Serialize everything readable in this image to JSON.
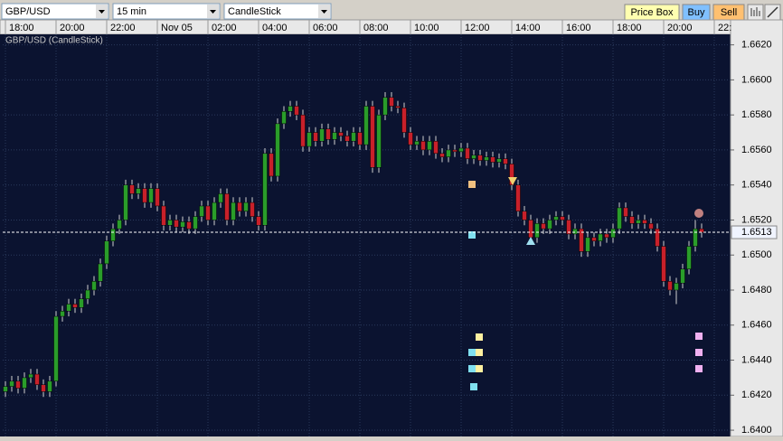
{
  "toolbar": {
    "symbol": "GBP/USD",
    "interval": "15 min",
    "chart_type": "CandleStick",
    "buttons": [
      "Price Box",
      "Buy",
      "Sell"
    ]
  },
  "chart_data": {
    "type": "candlestick",
    "title": "GBP/USD (CandleStick)",
    "up_color": "#2a9d2a",
    "down_color": "#c8202a",
    "grid": true,
    "xlim": [
      -0.43,
      114.57
    ],
    "xticks": [
      {
        "value": 0,
        "label": "18:00"
      },
      {
        "value": 8,
        "label": "20:00"
      },
      {
        "value": 16,
        "label": "22:00"
      },
      {
        "value": 24,
        "label": "Nov 05"
      },
      {
        "value": 32,
        "label": "02:00"
      },
      {
        "value": 40,
        "label": "04:00"
      },
      {
        "value": 48,
        "label": "06:00"
      },
      {
        "value": 56,
        "label": "08:00"
      },
      {
        "value": 64,
        "label": "10:00"
      },
      {
        "value": 72,
        "label": "12:00"
      },
      {
        "value": 80,
        "label": "14:00"
      },
      {
        "value": 88,
        "label": "16:00"
      },
      {
        "value": 96,
        "label": "18:00"
      },
      {
        "value": 104,
        "label": "20:00"
      },
      {
        "value": 112,
        "label": "22:"
      }
    ],
    "ylim": [
      1.6399,
      1.6626
    ],
    "yticks": [
      {
        "value": 1.64,
        "label": "1.6400"
      },
      {
        "value": 1.642,
        "label": "1.6420"
      },
      {
        "value": 1.644,
        "label": "1.6440"
      },
      {
        "value": 1.646,
        "label": "1.6460"
      },
      {
        "value": 1.648,
        "label": "1.6480"
      },
      {
        "value": 1.65,
        "label": "1.6500"
      },
      {
        "value": 1.652,
        "label": "1.6520"
      },
      {
        "value": 1.654,
        "label": "1.6540"
      },
      {
        "value": 1.656,
        "label": "1.6560"
      },
      {
        "value": 1.658,
        "label": "1.6580"
      },
      {
        "value": 1.66,
        "label": "1.6600"
      },
      {
        "value": 1.662,
        "label": "1.6620"
      }
    ],
    "current": {
      "value": 1.6513,
      "label": "1.6513"
    },
    "open": [
      1.6422,
      1.6425,
      1.6428,
      1.6424,
      1.643,
      1.6432,
      1.6426,
      1.6422,
      1.6428,
      1.6465,
      1.6468,
      1.6472,
      1.647,
      1.6475,
      1.648,
      1.6485,
      1.6495,
      1.6508,
      1.6515,
      1.652,
      1.654,
      1.6535,
      1.6538,
      1.653,
      1.6538,
      1.6528,
      1.6517,
      1.652,
      1.6516,
      1.6519,
      1.6515,
      1.6522,
      1.6528,
      1.652,
      1.653,
      1.6535,
      1.652,
      1.653,
      1.6525,
      1.653,
      1.6522,
      1.6517,
      1.6558,
      1.6545,
      1.6575,
      1.6582,
      1.6585,
      1.658,
      1.6562,
      1.657,
      1.6565,
      1.6572,
      1.6566,
      1.657,
      1.6568,
      1.6565,
      1.657,
      1.6563,
      1.6585,
      1.655,
      1.658,
      1.659,
      1.6585,
      1.6584,
      1.657,
      1.6563,
      1.6565,
      1.656,
      1.6565,
      1.6558,
      1.6556,
      1.656,
      1.6559,
      1.6561,
      1.6555,
      1.6557,
      1.6554,
      1.6556,
      1.6553,
      1.6555,
      1.6552,
      1.654,
      1.6525,
      1.652,
      1.651,
      1.6518,
      1.6515,
      1.652,
      1.6522,
      1.652,
      1.6512,
      1.6515,
      1.6502,
      1.651,
      1.6508,
      1.6512,
      1.651,
      1.6515,
      1.6527,
      1.6522,
      1.6518,
      1.652,
      1.6518,
      1.6515,
      1.6505,
      1.6485,
      1.648,
      1.6484,
      1.6492,
      1.6505,
      1.6515
    ],
    "high": [
      1.6428,
      1.6431,
      1.6431,
      1.6433,
      1.6435,
      1.6435,
      1.6429,
      1.6431,
      1.6468,
      1.6471,
      1.6475,
      1.6475,
      1.6478,
      1.6483,
      1.6488,
      1.6498,
      1.6511,
      1.6518,
      1.6523,
      1.6543,
      1.6543,
      1.6541,
      1.6541,
      1.6541,
      1.6541,
      1.6531,
      1.6523,
      1.6523,
      1.6522,
      1.6522,
      1.6525,
      1.6531,
      1.6531,
      1.6533,
      1.6538,
      1.6538,
      1.6533,
      1.6533,
      1.6533,
      1.6533,
      1.6525,
      1.6561,
      1.6561,
      1.6578,
      1.6585,
      1.6588,
      1.6588,
      1.6583,
      1.6573,
      1.6573,
      1.6575,
      1.6575,
      1.6573,
      1.6573,
      1.6571,
      1.6573,
      1.6573,
      1.6588,
      1.6588,
      1.6583,
      1.6593,
      1.6593,
      1.6588,
      1.6587,
      1.6573,
      1.6568,
      1.6568,
      1.6568,
      1.6568,
      1.6561,
      1.6563,
      1.6563,
      1.6564,
      1.6564,
      1.656,
      1.656,
      1.6559,
      1.6559,
      1.6558,
      1.6558,
      1.6555,
      1.6543,
      1.6528,
      1.6523,
      1.6521,
      1.6521,
      1.6523,
      1.6525,
      1.6525,
      1.6523,
      1.6518,
      1.6518,
      1.6513,
      1.6513,
      1.6515,
      1.6515,
      1.6518,
      1.653,
      1.653,
      1.6525,
      1.6523,
      1.6523,
      1.6521,
      1.6518,
      1.6508,
      1.6488,
      1.6487,
      1.6495,
      1.6508,
      1.652,
      1.6518
    ],
    "low": [
      1.6419,
      1.6422,
      1.6421,
      1.6421,
      1.6427,
      1.6423,
      1.6419,
      1.6419,
      1.6425,
      1.6462,
      1.6465,
      1.6467,
      1.6467,
      1.6472,
      1.6477,
      1.6482,
      1.6492,
      1.6505,
      1.6512,
      1.6517,
      1.6532,
      1.6532,
      1.6527,
      1.6527,
      1.6525,
      1.6514,
      1.6514,
      1.6513,
      1.6513,
      1.6512,
      1.6512,
      1.6519,
      1.6517,
      1.6517,
      1.6527,
      1.6517,
      1.6517,
      1.6522,
      1.6522,
      1.6519,
      1.6514,
      1.6514,
      1.6542,
      1.6542,
      1.6572,
      1.6579,
      1.6577,
      1.6559,
      1.6559,
      1.6562,
      1.6562,
      1.6563,
      1.6563,
      1.6565,
      1.6562,
      1.6562,
      1.656,
      1.656,
      1.6547,
      1.6547,
      1.6577,
      1.6582,
      1.6581,
      1.6567,
      1.656,
      1.656,
      1.6557,
      1.6557,
      1.6555,
      1.6553,
      1.6553,
      1.6556,
      1.6556,
      1.6552,
      1.6552,
      1.6551,
      1.6551,
      1.655,
      1.655,
      1.6549,
      1.6537,
      1.6522,
      1.6517,
      1.6507,
      1.6507,
      1.6512,
      1.6512,
      1.6517,
      1.6517,
      1.6509,
      1.6509,
      1.6499,
      1.6499,
      1.6505,
      1.6505,
      1.6507,
      1.6507,
      1.6512,
      1.6519,
      1.6515,
      1.6515,
      1.6515,
      1.6512,
      1.6502,
      1.6482,
      1.6477,
      1.6472,
      1.6481,
      1.6489,
      1.6502,
      1.651
    ],
    "close": [
      1.6425,
      1.6428,
      1.6424,
      1.643,
      1.6432,
      1.6426,
      1.6422,
      1.6428,
      1.6465,
      1.6468,
      1.6472,
      1.647,
      1.6475,
      1.648,
      1.6485,
      1.6495,
      1.6508,
      1.6515,
      1.652,
      1.654,
      1.6535,
      1.6538,
      1.653,
      1.6538,
      1.6528,
      1.6517,
      1.652,
      1.6516,
      1.6519,
      1.6515,
      1.6522,
      1.6528,
      1.652,
      1.653,
      1.6535,
      1.652,
      1.653,
      1.6525,
      1.653,
      1.6522,
      1.6517,
      1.6558,
      1.6545,
      1.6575,
      1.6582,
      1.6585,
      1.658,
      1.6562,
      1.657,
      1.6565,
      1.6572,
      1.6566,
      1.657,
      1.6568,
      1.6565,
      1.657,
      1.6563,
      1.6585,
      1.655,
      1.658,
      1.659,
      1.6585,
      1.6584,
      1.657,
      1.6563,
      1.6565,
      1.656,
      1.6565,
      1.6558,
      1.6556,
      1.656,
      1.6559,
      1.6561,
      1.6555,
      1.6557,
      1.6554,
      1.6556,
      1.6553,
      1.6555,
      1.6552,
      1.654,
      1.6525,
      1.652,
      1.651,
      1.6518,
      1.6515,
      1.652,
      1.6522,
      1.652,
      1.6512,
      1.6515,
      1.6502,
      1.651,
      1.6508,
      1.6512,
      1.651,
      1.6515,
      1.6527,
      1.6522,
      1.6518,
      1.652,
      1.6518,
      1.6515,
      1.6505,
      1.6485,
      1.648,
      1.6484,
      1.6492,
      1.6505,
      1.6515,
      1.6513
    ]
  }
}
